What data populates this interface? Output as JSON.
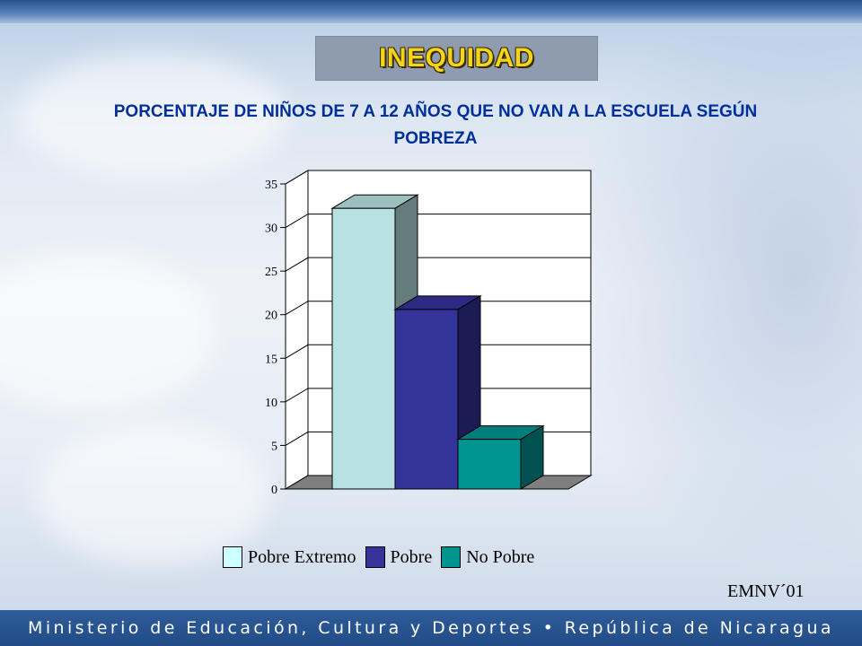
{
  "slide": {
    "title": "INEQUIDAD",
    "subtitle": "PORCENTAJE DE NIÑOS DE 7 A 12 AÑOS QUE NO VAN A LA ESCUELA SEGÚN POBREZA",
    "source": "EMNV´01",
    "footer": "Ministerio de Educación, Cultura y Deportes • República de Nicaragua"
  },
  "colors": {
    "title_text": "#f4d51c",
    "subtitle_text": "#002f9c",
    "footer_band": "#204b86"
  },
  "chart_data": {
    "type": "bar",
    "title": "",
    "xlabel": "",
    "ylabel": "",
    "categories": [
      "Pobre Extremo",
      "Pobre",
      "No Pobre"
    ],
    "values": [
      32.2,
      20.6,
      5.7
    ],
    "ylim": [
      0,
      35
    ],
    "yticks": [
      "0",
      "5",
      "10",
      "15",
      "20",
      "25",
      "30",
      "35"
    ],
    "grid": true,
    "three_d": true,
    "legend_position": "bottom",
    "colors": [
      "#b7e1e2",
      "#33339a",
      "#009491"
    ]
  }
}
